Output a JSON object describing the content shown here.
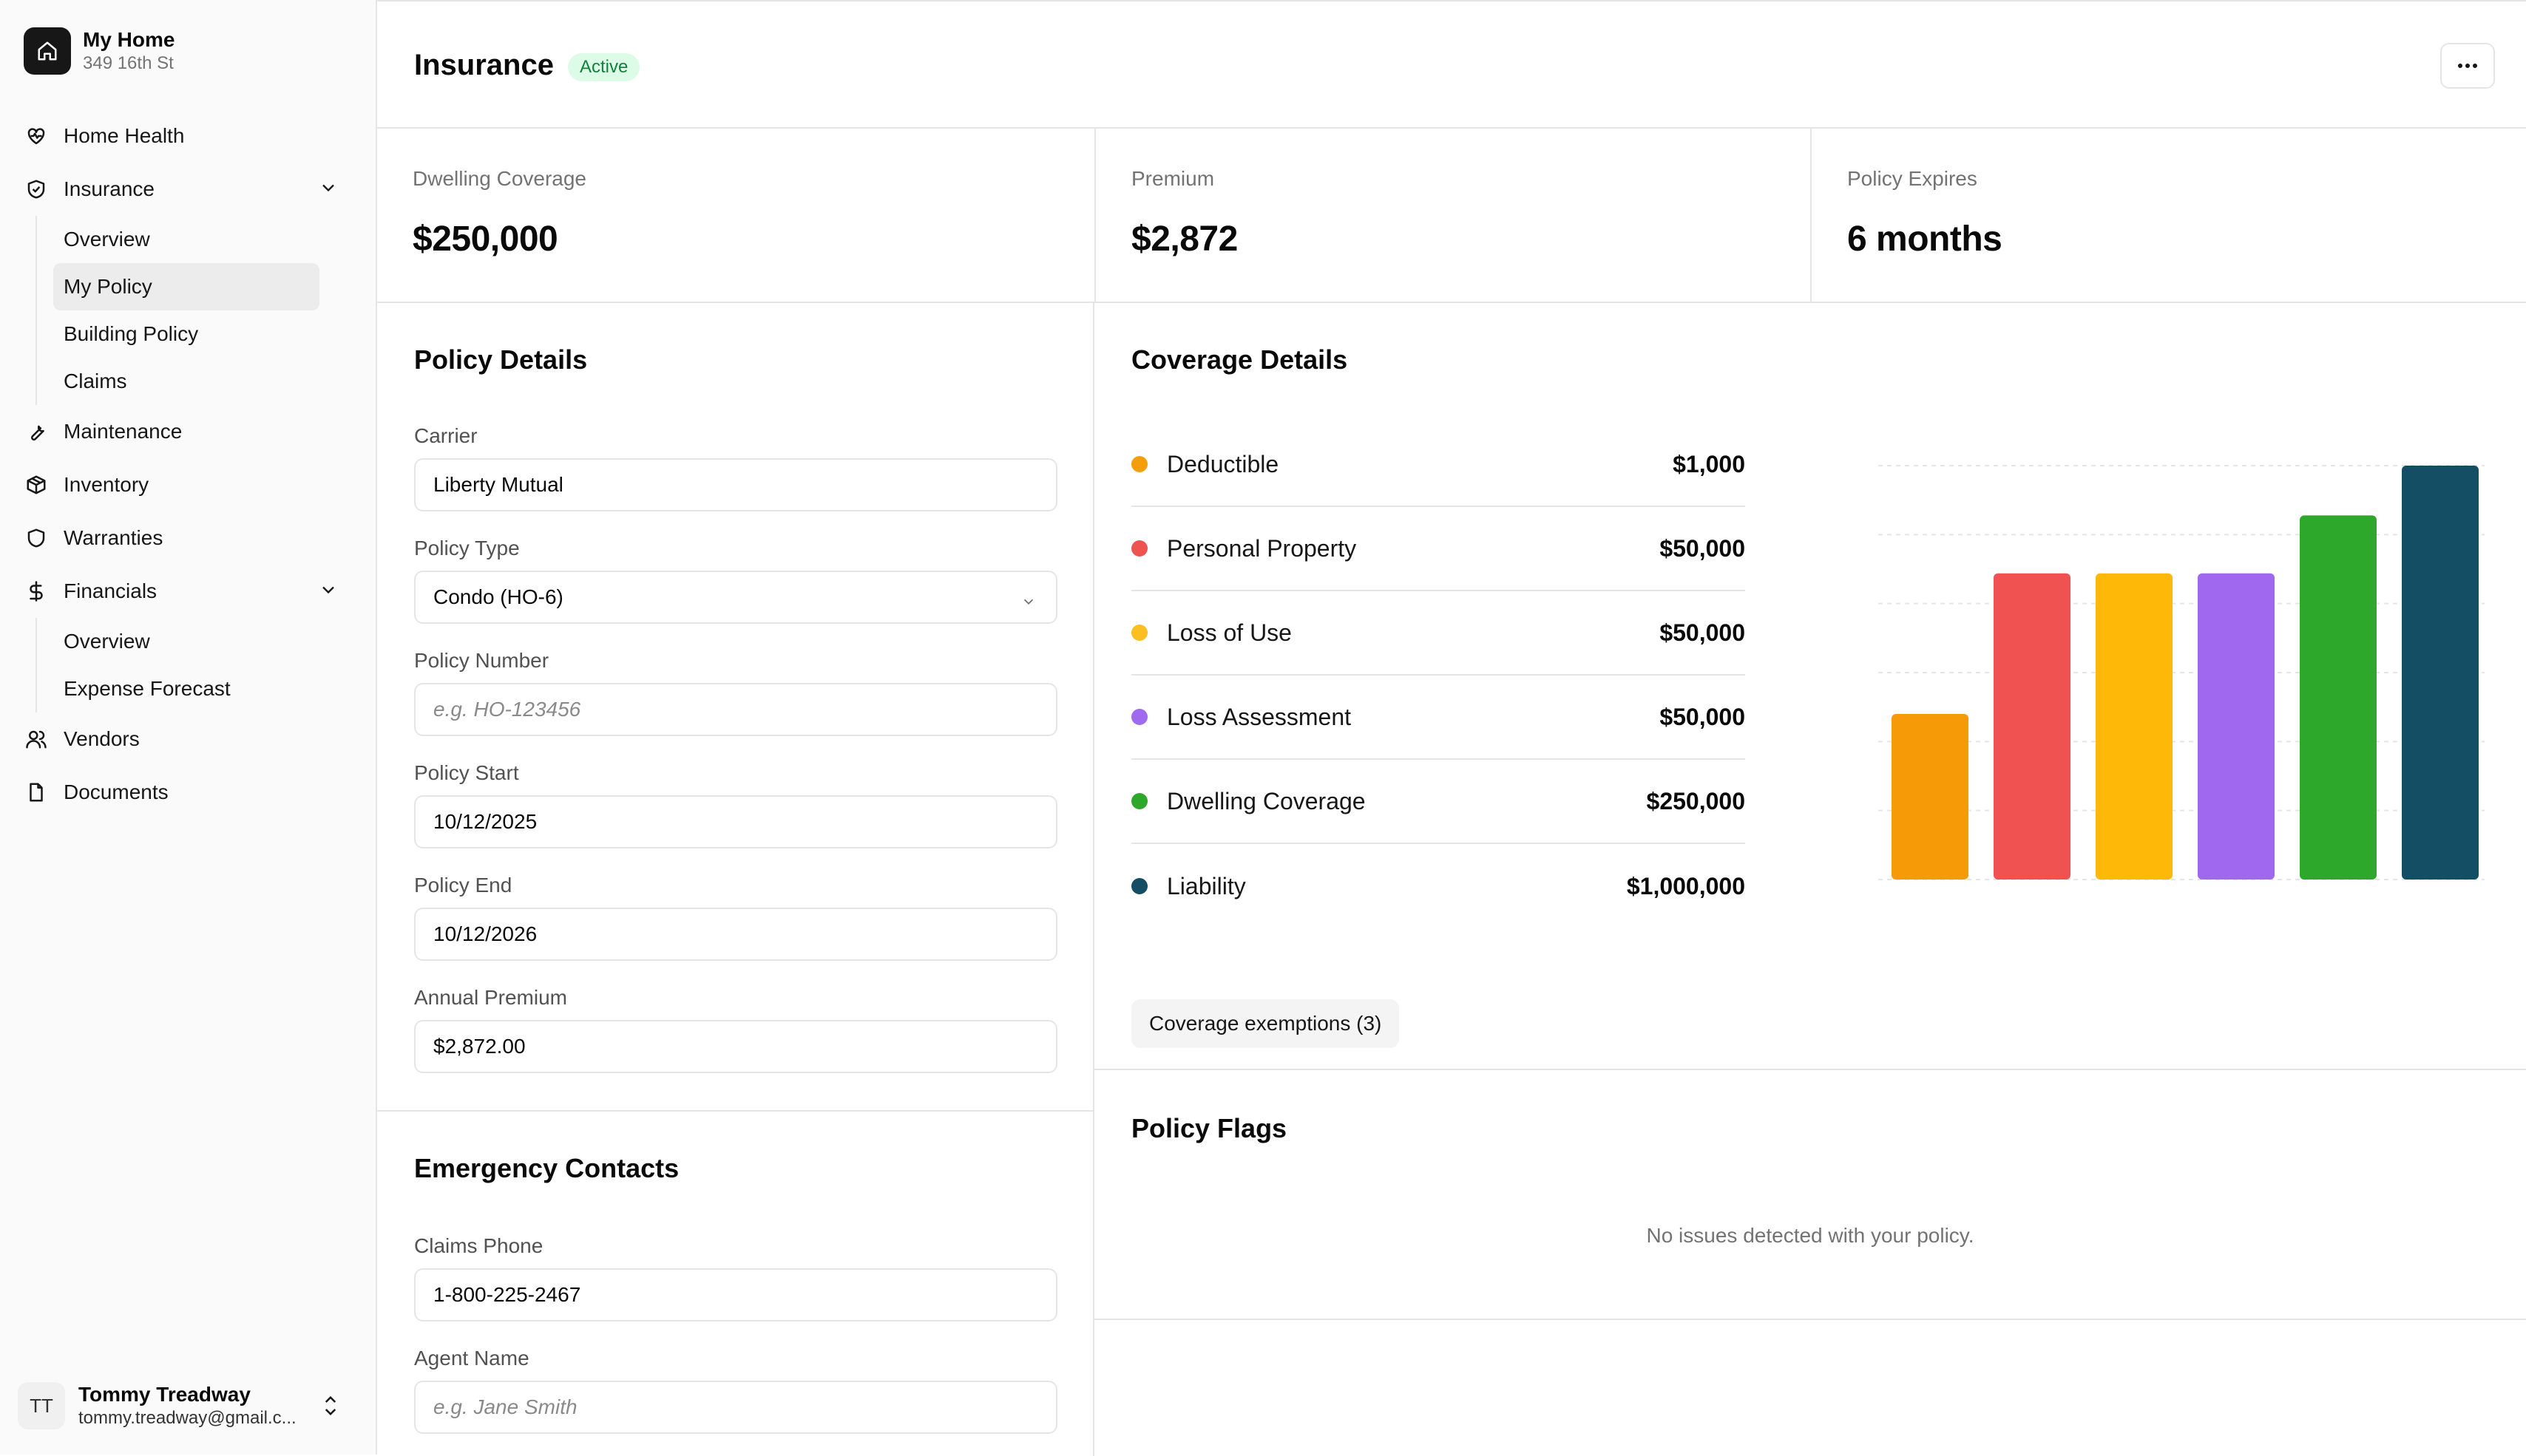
{
  "app": {
    "name": "My Home",
    "address": "349 16th St"
  },
  "nav": {
    "home_health": "Home Health",
    "insurance": "Insurance",
    "insurance_sub": [
      "Overview",
      "My Policy",
      "Building Policy",
      "Claims"
    ],
    "maintenance": "Maintenance",
    "inventory": "Inventory",
    "warranties": "Warranties",
    "financials": "Financials",
    "financials_sub": [
      "Overview",
      "Expense Forecast"
    ],
    "vendors": "Vendors",
    "documents": "Documents",
    "active_item": "My Policy"
  },
  "user": {
    "initials": "TT",
    "name": "Tommy Treadway",
    "email": "tommy.treadway@gmail.c..."
  },
  "header": {
    "title": "Insurance",
    "status": "Active",
    "more_icon": "ellipsis-icon"
  },
  "stats": [
    {
      "label": "Dwelling Coverage",
      "value": "$250,000"
    },
    {
      "label": "Premium",
      "value": "$2,872"
    },
    {
      "label": "Policy Expires",
      "value": "6 months"
    }
  ],
  "policy_details": {
    "title": "Policy Details",
    "carrier_label": "Carrier",
    "carrier_value": "Liberty Mutual",
    "type_label": "Policy Type",
    "type_value": "Condo (HO-6)",
    "number_label": "Policy Number",
    "number_placeholder": "e.g. HO-123456",
    "start_label": "Policy Start",
    "start_value": "10/12/2025",
    "end_label": "Policy End",
    "end_value": "10/12/2026",
    "premium_label": "Annual Premium",
    "premium_value": "$2,872.00"
  },
  "emergency": {
    "title": "Emergency Contacts",
    "phone_label": "Claims Phone",
    "phone_value": "1-800-225-2467",
    "agent_label": "Agent Name",
    "agent_placeholder": "e.g. Jane Smith"
  },
  "coverage": {
    "title": "Coverage Details",
    "items": [
      {
        "name": "Deductible",
        "amount": "$1,000",
        "color": "#f59e0b"
      },
      {
        "name": "Personal Property",
        "amount": "$50,000",
        "color": "#ef5350"
      },
      {
        "name": "Loss of Use",
        "amount": "$50,000",
        "color": "#fbbf24"
      },
      {
        "name": "Loss Assessment",
        "amount": "$50,000",
        "color": "#a06af0"
      },
      {
        "name": "Dwelling Coverage",
        "amount": "$250,000",
        "color": "#2ea82a"
      },
      {
        "name": "Liability",
        "amount": "$1,000,000",
        "color": "#134e65"
      }
    ],
    "exemptions_label": "Coverage exemptions (3)"
  },
  "chart_data": {
    "type": "bar",
    "categories": [
      "Deductible",
      "Personal Property",
      "Loss of Use",
      "Loss Assessment",
      "Dwelling Coverage",
      "Liability"
    ],
    "values": [
      1000,
      50000,
      50000,
      50000,
      250000,
      1000000
    ],
    "colors": [
      "#f79a08",
      "#f05252",
      "#fdb808",
      "#a068ee",
      "#2ea82a",
      "#134e65"
    ],
    "scale": "log",
    "ylim": [
      10,
      1000000
    ],
    "grid": true,
    "title": "",
    "xlabel": "",
    "ylabel": ""
  },
  "flags": {
    "title": "Policy Flags",
    "empty_text": "No issues detected with your policy."
  }
}
